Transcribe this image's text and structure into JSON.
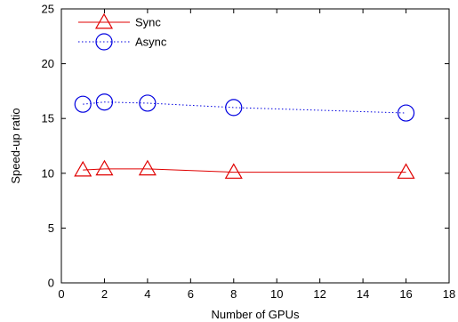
{
  "chart_data": {
    "type": "line",
    "xlabel": "Number of GPUs",
    "ylabel": "Speed-up ratio",
    "xlim": [
      0,
      18
    ],
    "ylim": [
      0,
      25
    ],
    "xticks": [
      "0",
      "2",
      "4",
      "6",
      "8",
      "10",
      "12",
      "14",
      "16",
      "18"
    ],
    "yticks": [
      "0",
      "5",
      "10",
      "15",
      "20",
      "25"
    ],
    "grid": false,
    "legend": "top-left",
    "x": [
      1,
      2,
      4,
      8,
      16
    ],
    "series": [
      {
        "name": "Sync",
        "values": [
          10.3,
          10.4,
          10.4,
          10.1,
          10.1
        ],
        "color": "#e00000",
        "marker": "triangle",
        "line": "solid"
      },
      {
        "name": "Async",
        "values": [
          16.3,
          16.5,
          16.4,
          16.0,
          15.5
        ],
        "color": "#0000e0",
        "marker": "circle",
        "line": "dotted"
      }
    ]
  }
}
